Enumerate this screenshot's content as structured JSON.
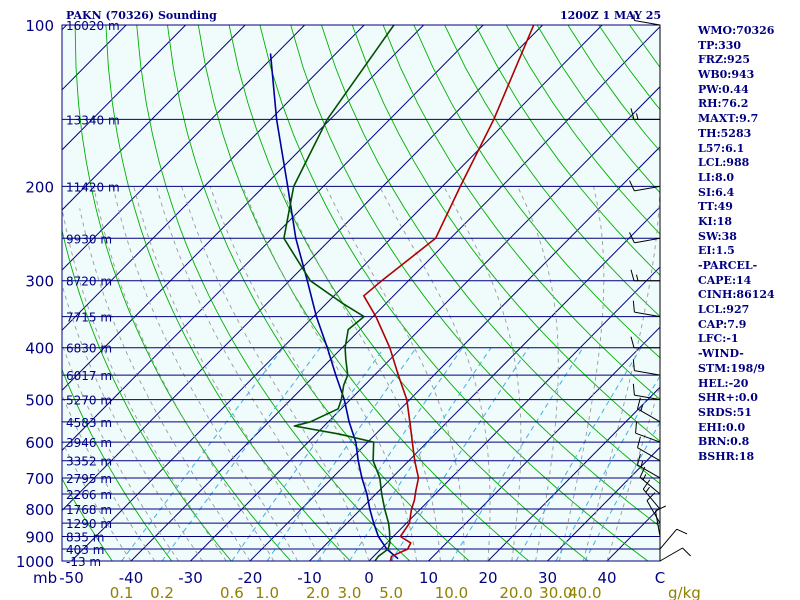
{
  "header": {
    "station": "PAKN (70326) Sounding",
    "time": "1200Z  1 MAY 25"
  },
  "indices": [
    "WMO:70326",
    "TP:330",
    "FRZ:925",
    "WB0:943",
    "PW:0.44",
    "RH:76.2",
    "MAXT:9.7",
    "TH:5283",
    "L57:6.1",
    "LCL:988",
    "LI:8.0",
    "SI:6.4",
    "TT:49",
    "KI:18",
    "SW:38",
    "EI:1.5",
    "-PARCEL-",
    "CAPE:14",
    "CINH:86124",
    "LCL:927",
    "CAP:7.9",
    "LFC:-1",
    "-WIND-",
    "STM:198/9",
    "HEL:-20",
    "SHR+:0.0",
    "SRDS:51",
    "EHI:0.0",
    "BRN:0.8",
    "BSHR:18"
  ],
  "colors": {
    "background": "#ffffff",
    "plot_background": "#f0fbfb",
    "isobar": "#000080",
    "isotherm": "#000080",
    "dry_adiabat": "#00b000",
    "moist_adiabat": "#9a9a9a",
    "mixing_ratio": "#40b0e0",
    "temperature": "#b00000",
    "dewpoint": "#005000",
    "parcel": "#0000a0",
    "wind": "#000000",
    "mixing_ratio_labels": "#908000",
    "text": "#000080"
  },
  "chart_data": {
    "type": "skew-t",
    "title": "PAKN (70326) Sounding",
    "subtitle": "1200Z  1 MAY 25",
    "pressure_unit": "mb",
    "temperature_unit": "C",
    "mixing_ratio_unit": "g/kg",
    "pressure_range": [
      1000,
      100
    ],
    "temperature_ticks": [
      -50,
      -40,
      -30,
      -20,
      -10,
      0,
      10,
      20,
      30,
      40
    ],
    "pressure_ticks": [
      100,
      200,
      300,
      400,
      500,
      600,
      700,
      800,
      900,
      1000
    ],
    "height_labels": [
      {
        "p": 100,
        "label": "16020 m"
      },
      {
        "p": 150,
        "label": "13340 m"
      },
      {
        "p": 200,
        "label": "11420 m"
      },
      {
        "p": 250,
        "label": "9930 m"
      },
      {
        "p": 300,
        "label": "8720 m"
      },
      {
        "p": 350,
        "label": "7715 m"
      },
      {
        "p": 400,
        "label": "6830 m"
      },
      {
        "p": 450,
        "label": "6017 m"
      },
      {
        "p": 500,
        "label": "5270 m"
      },
      {
        "p": 550,
        "label": "4583 m"
      },
      {
        "p": 600,
        "label": "3946 m"
      },
      {
        "p": 650,
        "label": "3352 m"
      },
      {
        "p": 700,
        "label": "2795 m"
      },
      {
        "p": 750,
        "label": "2266 m"
      },
      {
        "p": 800,
        "label": "1768 m"
      },
      {
        "p": 850,
        "label": "1290 m"
      },
      {
        "p": 900,
        "label": "835 m"
      },
      {
        "p": 950,
        "label": "403 m"
      },
      {
        "p": 1000,
        "label": "-13 m"
      }
    ],
    "mixing_ratio_values": [
      0.1,
      0.2,
      0.6,
      1.0,
      2.0,
      3.0,
      5.0,
      10.0,
      20.0,
      30.0,
      40.0
    ],
    "mixing_ratio_labels": [
      "0.1",
      "0.2",
      "0.6",
      "1.0",
      "2.0",
      "3.0",
      "5.0",
      "10.0",
      "20.0",
      "30.0",
      "40.0"
    ],
    "temperature_profile": [
      {
        "p": 1000,
        "t": 3.6
      },
      {
        "p": 980,
        "t": 3.0
      },
      {
        "p": 950,
        "t": 4.5
      },
      {
        "p": 925,
        "t": 4.0
      },
      {
        "p": 900,
        "t": 1.2
      },
      {
        "p": 850,
        "t": 0.5
      },
      {
        "p": 800,
        "t": -1.5
      },
      {
        "p": 770,
        "t": -2.5
      },
      {
        "p": 740,
        "t": -3.8
      },
      {
        "p": 700,
        "t": -5.5
      },
      {
        "p": 650,
        "t": -9.0
      },
      {
        "p": 600,
        "t": -12.5
      },
      {
        "p": 560,
        "t": -15.5
      },
      {
        "p": 500,
        "t": -20.5
      },
      {
        "p": 450,
        "t": -26.0
      },
      {
        "p": 400,
        "t": -32.0
      },
      {
        "p": 350,
        "t": -39.5
      },
      {
        "p": 320,
        "t": -45.0
      },
      {
        "p": 300,
        "t": -44.5
      },
      {
        "p": 250,
        "t": -42.5
      },
      {
        "p": 200,
        "t": -47.0
      },
      {
        "p": 150,
        "t": -52.5
      },
      {
        "p": 100,
        "t": -61.5
      }
    ],
    "dewpoint_profile": [
      {
        "p": 1000,
        "t": 1.0
      },
      {
        "p": 980,
        "t": 0.8
      },
      {
        "p": 950,
        "t": 1.2
      },
      {
        "p": 925,
        "t": 0.5
      },
      {
        "p": 880,
        "t": -1.5
      },
      {
        "p": 850,
        "t": -3.0
      },
      {
        "p": 800,
        "t": -6.0
      },
      {
        "p": 750,
        "t": -9.0
      },
      {
        "p": 700,
        "t": -12.0
      },
      {
        "p": 650,
        "t": -16.0
      },
      {
        "p": 600,
        "t": -19.0
      },
      {
        "p": 580,
        "t": -26.0
      },
      {
        "p": 560,
        "t": -35.0
      },
      {
        "p": 550,
        "t": -33.0
      },
      {
        "p": 520,
        "t": -30.5
      },
      {
        "p": 500,
        "t": -31.5
      },
      {
        "p": 470,
        "t": -33.5
      },
      {
        "p": 450,
        "t": -34.5
      },
      {
        "p": 420,
        "t": -37.5
      },
      {
        "p": 400,
        "t": -39.5
      },
      {
        "p": 370,
        "t": -42.0
      },
      {
        "p": 350,
        "t": -41.5
      },
      {
        "p": 330,
        "t": -47.5
      },
      {
        "p": 300,
        "t": -56.5
      },
      {
        "p": 250,
        "t": -68.0
      },
      {
        "p": 200,
        "t": -75.0
      },
      {
        "p": 150,
        "t": -80.5
      },
      {
        "p": 100,
        "t": -85.0
      }
    ],
    "parcel_profile": [
      {
        "p": 990,
        "t": 4.5
      },
      {
        "p": 950,
        "t": 1.0
      },
      {
        "p": 900,
        "t": -2.5
      },
      {
        "p": 850,
        "t": -5.5
      },
      {
        "p": 800,
        "t": -8.5
      },
      {
        "p": 750,
        "t": -11.5
      },
      {
        "p": 700,
        "t": -15.0
      },
      {
        "p": 650,
        "t": -18.5
      },
      {
        "p": 600,
        "t": -22.0
      },
      {
        "p": 550,
        "t": -26.5
      },
      {
        "p": 500,
        "t": -31.0
      },
      {
        "p": 450,
        "t": -36.5
      },
      {
        "p": 400,
        "t": -42.5
      },
      {
        "p": 350,
        "t": -49.5
      },
      {
        "p": 300,
        "t": -57.0
      },
      {
        "p": 250,
        "t": -66.0
      },
      {
        "p": 200,
        "t": -76.0
      },
      {
        "p": 150,
        "t": -89.0
      },
      {
        "p": 113,
        "t": -101.0
      }
    ],
    "wind_profile": [
      {
        "p": 1000,
        "dir": 60,
        "spd": 10
      },
      {
        "p": 950,
        "dir": 40,
        "spd": 10
      },
      {
        "p": 900,
        "dir": 350,
        "spd": 10
      },
      {
        "p": 850,
        "dir": 330,
        "spd": 10
      },
      {
        "p": 800,
        "dir": 320,
        "spd": 15
      },
      {
        "p": 750,
        "dir": 310,
        "spd": 15
      },
      {
        "p": 700,
        "dir": 300,
        "spd": 15
      },
      {
        "p": 650,
        "dir": 300,
        "spd": 10
      },
      {
        "p": 600,
        "dir": 290,
        "spd": 10
      },
      {
        "p": 550,
        "dir": 300,
        "spd": 15
      },
      {
        "p": 500,
        "dir": 280,
        "spd": 10
      },
      {
        "p": 450,
        "dir": 280,
        "spd": 10
      },
      {
        "p": 400,
        "dir": 270,
        "spd": 10
      },
      {
        "p": 350,
        "dir": 280,
        "spd": 10
      },
      {
        "p": 300,
        "dir": 270,
        "spd": 15
      },
      {
        "p": 250,
        "dir": 260,
        "spd": 10
      },
      {
        "p": 200,
        "dir": 260,
        "spd": 10
      },
      {
        "p": 150,
        "dir": 270,
        "spd": 15
      },
      {
        "p": 100,
        "dir": 280,
        "spd": 5
      }
    ]
  }
}
